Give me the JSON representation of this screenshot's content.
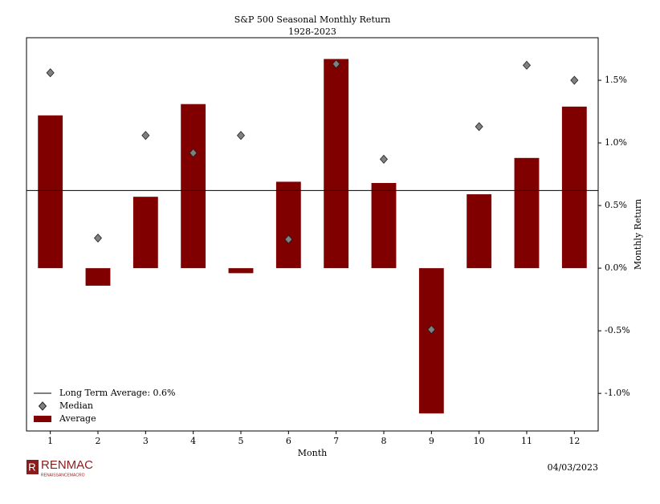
{
  "chart_data": {
    "type": "bar",
    "title": "S&P 500 Seasonal Monthly Return",
    "subtitle": "1928-2023",
    "xlabel": "Month",
    "ylabel": "Monthly Return",
    "date": "04/03/2023",
    "brand": {
      "name": "RENMAC",
      "tagline": "RENAISSANCEMACRO"
    },
    "categories": [
      "1",
      "2",
      "3",
      "4",
      "5",
      "6",
      "7",
      "8",
      "9",
      "10",
      "11",
      "12"
    ],
    "series": [
      {
        "name": "Average",
        "kind": "bar",
        "color": "#800000",
        "values": [
          1.22,
          -0.14,
          0.57,
          1.31,
          -0.04,
          0.69,
          1.67,
          0.68,
          -1.16,
          0.59,
          0.88,
          1.29
        ]
      },
      {
        "name": "Median",
        "kind": "diamond",
        "color": "#808080",
        "values": [
          1.56,
          0.24,
          1.06,
          0.92,
          1.06,
          0.23,
          1.63,
          0.87,
          -0.49,
          1.13,
          1.62,
          1.5
        ]
      }
    ],
    "reference_line": {
      "value": 0.62,
      "label": "Long Term Average: 0.6%"
    },
    "ylim": [
      -1.3,
      1.84
    ],
    "yticks": [
      {
        "value": -1.0,
        "label": "-1.0%"
      },
      {
        "value": -0.5,
        "label": "-0.5%"
      },
      {
        "value": 0.0,
        "label": "0.0%"
      },
      {
        "value": 0.5,
        "label": "0.5%"
      },
      {
        "value": 1.0,
        "label": "1.0%"
      },
      {
        "value": 1.5,
        "label": "1.5%"
      }
    ],
    "y_axis_side": "right",
    "legend": "lower left"
  }
}
